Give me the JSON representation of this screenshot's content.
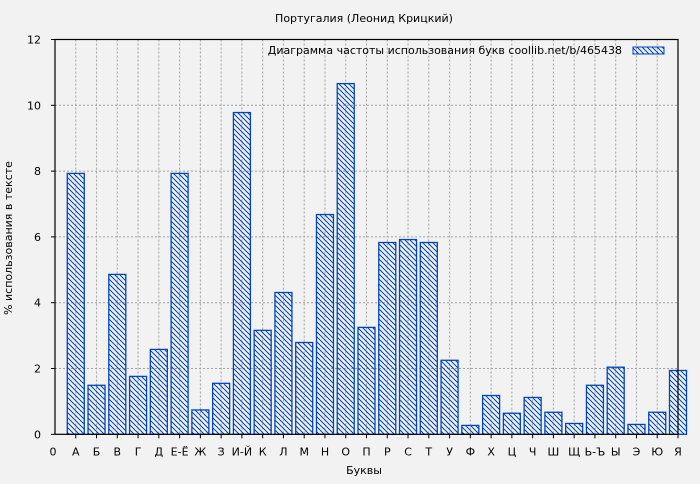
{
  "chart_data": {
    "type": "bar",
    "title": "Португалия (Леонид Крицкий)",
    "xlabel": "Буквы",
    "ylabel": "% использования в тексте",
    "ylim": [
      0,
      12
    ],
    "yticks": [
      "0",
      "2",
      "4",
      "6",
      "8",
      "10",
      "12"
    ],
    "x_origin_label": "0",
    "categories": [
      "А",
      "Б",
      "В",
      "Г",
      "Д",
      "Е-Ё",
      "Ж",
      "З",
      "И-Й",
      "К",
      "Л",
      "М",
      "Н",
      "О",
      "П",
      "Р",
      "С",
      "Т",
      "У",
      "Ф",
      "Х",
      "Ц",
      "Ч",
      "Ш",
      "Щ",
      "Ь-Ъ",
      "Ы",
      "Э",
      "Ю",
      "Я"
    ],
    "series": [
      {
        "name": "Диаграмма частоты использования букв  coollib.net/b/465438",
        "values": [
          7.93,
          1.49,
          4.86,
          1.76,
          2.58,
          7.93,
          0.74,
          1.55,
          9.78,
          3.16,
          4.31,
          2.79,
          6.68,
          10.66,
          3.25,
          5.83,
          5.92,
          5.83,
          2.25,
          0.27,
          1.18,
          0.64,
          1.12,
          0.67,
          0.33,
          1.49,
          2.04,
          0.3,
          0.67,
          1.94
        ]
      }
    ],
    "grid": true,
    "legend": "top-right",
    "colors": {
      "bar": "#0044bb",
      "background": "#f2f2f2",
      "grid": "#a0a0a0"
    }
  }
}
